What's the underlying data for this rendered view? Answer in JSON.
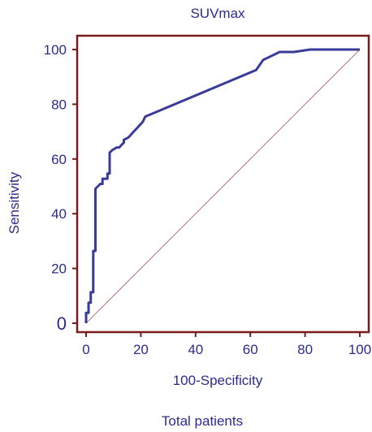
{
  "chart_data": {
    "type": "line",
    "title": "SUVmax",
    "xlabel": "100-Specificity",
    "ylabel": "Sensitivity",
    "footer": "Total patients",
    "xlim": [
      0,
      100
    ],
    "ylim": [
      0,
      100
    ],
    "x_ticks": [
      "0",
      "20",
      "40",
      "60",
      "80",
      "100"
    ],
    "y_ticks": [
      "0",
      "20",
      "40",
      "60",
      "80",
      "100"
    ],
    "grid": false,
    "colors": {
      "frame": "#7a1a1a",
      "curve": "#3a3a9a",
      "reference": "#c07070",
      "text": "#2b2b8f"
    },
    "series": [
      {
        "values_x": [
          0,
          0,
          0.9,
          0.9,
          1.7,
          1.7,
          2.6,
          2.6,
          3.4,
          3.4,
          4.3,
          5.2,
          6.0,
          6.0,
          7.8,
          7.8,
          8.6,
          8.6,
          9.5,
          11.2,
          12.1,
          12.9,
          13.8,
          13.8,
          15.5,
          17.2,
          19.0,
          20.7,
          21.6,
          62.1,
          64.7,
          70.7,
          75.9,
          81.9,
          100
        ],
        "values_y": [
          0,
          3.8,
          3.8,
          7.5,
          7.5,
          11.3,
          11.3,
          26.4,
          26.4,
          49.1,
          50.0,
          50.9,
          50.9,
          52.8,
          52.8,
          54.7,
          54.7,
          62.3,
          63.2,
          64.2,
          64.2,
          65.1,
          66.0,
          67.0,
          67.9,
          69.8,
          71.7,
          73.6,
          75.5,
          92.5,
          96.2,
          99.1,
          99.1,
          100,
          100
        ]
      },
      {
        "values_x": [
          0,
          100
        ],
        "values_y": [
          0,
          100
        ]
      }
    ]
  }
}
